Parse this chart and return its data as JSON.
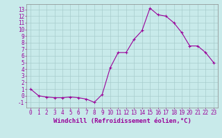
{
  "x": [
    0,
    1,
    2,
    3,
    4,
    5,
    6,
    7,
    8,
    9,
    10,
    11,
    12,
    13,
    14,
    15,
    16,
    17,
    18,
    19,
    20,
    21,
    22,
    23
  ],
  "y": [
    1,
    0,
    -0.2,
    -0.3,
    -0.3,
    -0.2,
    -0.3,
    -0.5,
    -1.0,
    0.2,
    4.2,
    6.5,
    6.5,
    8.5,
    9.8,
    13.2,
    12.2,
    12.0,
    11.0,
    9.5,
    7.5,
    7.5,
    6.5,
    5.0
  ],
  "line_color": "#990099",
  "marker": "+",
  "bg_color": "#c8eaea",
  "grid_color": "#a8cccc",
  "spine_color": "#888888",
  "tick_color": "#990099",
  "xlabel": "Windchill (Refroidissement éolien,°C)",
  "ylim": [
    -1.8,
    13.8
  ],
  "xlim": [
    -0.5,
    23.5
  ],
  "yticks": [
    -1,
    0,
    1,
    2,
    3,
    4,
    5,
    6,
    7,
    8,
    9,
    10,
    11,
    12,
    13
  ],
  "xticks": [
    0,
    1,
    2,
    3,
    4,
    5,
    6,
    7,
    8,
    9,
    10,
    11,
    12,
    13,
    14,
    15,
    16,
    17,
    18,
    19,
    20,
    21,
    22,
    23
  ],
  "xlabel_fontsize": 6.5,
  "tick_fontsize": 5.5
}
